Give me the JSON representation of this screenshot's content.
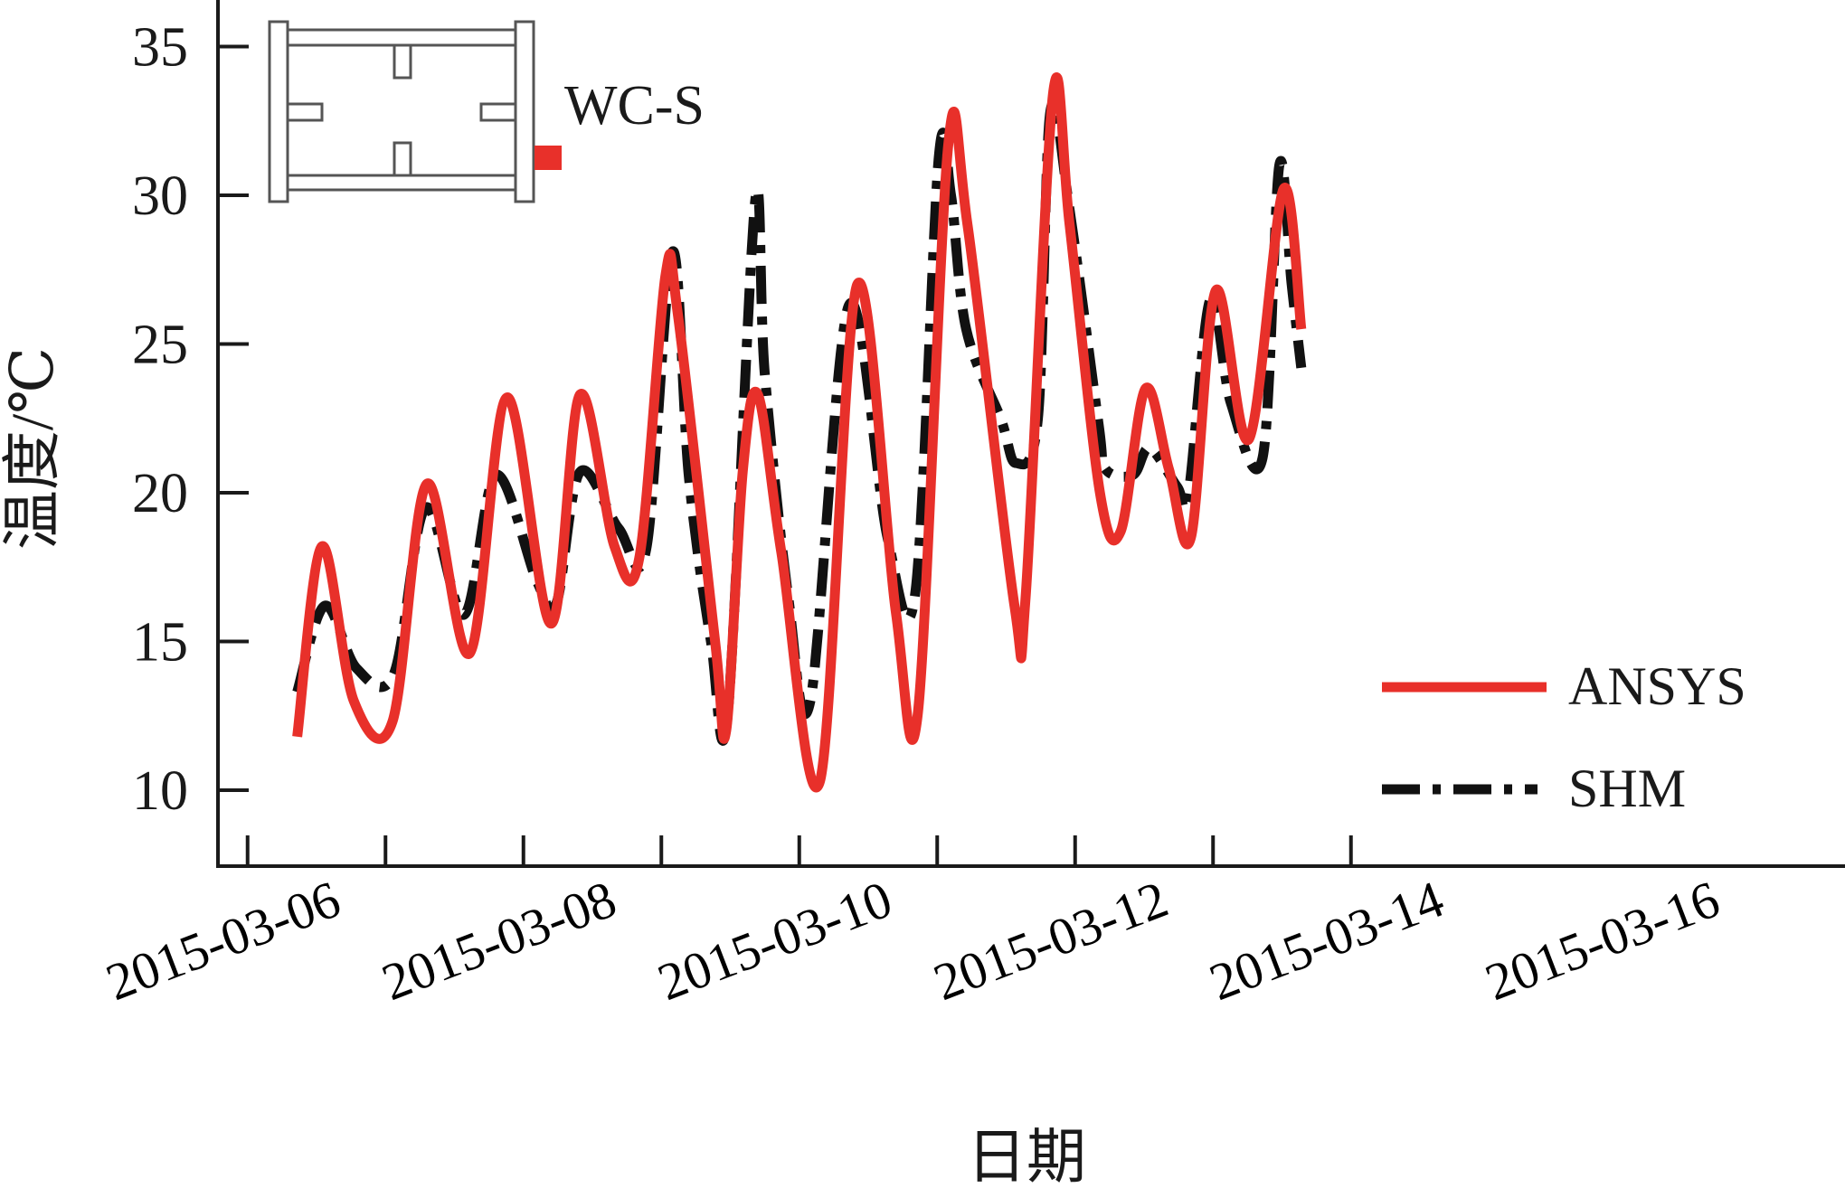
{
  "chart_data": {
    "type": "line",
    "title": "",
    "xlabel": "日期",
    "ylabel": "温度/℃",
    "ylim": [
      7.5,
      36.5
    ],
    "yticks": [
      10,
      15,
      20,
      25,
      30,
      35
    ],
    "x_tick_labels": [
      "2015-03-06",
      "2015-03-08",
      "2015-03-10",
      "2015-03-12",
      "2015-03-14",
      "2015-03-16"
    ],
    "legend_position": "right",
    "inset_label": "WC-S",
    "colors": {
      "ANSYS": "#e8302a",
      "SHM": "#111111",
      "sensor_marker": "#e8302a",
      "inset_frame": "#555555"
    },
    "series": [
      {
        "name": "ANSYS",
        "style": "solid",
        "points": [
          [
            -0.14,
            11.8
          ],
          [
            0.04,
            18.2
          ],
          [
            0.27,
            13.0
          ],
          [
            0.55,
            12.3
          ],
          [
            0.8,
            20.3
          ],
          [
            1.11,
            14.6
          ],
          [
            1.38,
            23.2
          ],
          [
            1.7,
            15.6
          ],
          [
            1.91,
            23.3
          ],
          [
            2.16,
            18.2
          ],
          [
            2.34,
            17.8
          ],
          [
            2.53,
            27.3
          ],
          [
            2.62,
            26.0
          ],
          [
            2.89,
            15.0
          ],
          [
            2.97,
            12.0
          ],
          [
            3.09,
            20.7
          ],
          [
            3.2,
            23.3
          ],
          [
            3.37,
            18.0
          ],
          [
            3.65,
            10.3
          ],
          [
            3.92,
            27.0
          ],
          [
            4.2,
            16.0
          ],
          [
            4.36,
            12.6
          ],
          [
            4.58,
            31.7
          ],
          [
            4.72,
            29.0
          ],
          [
            5.06,
            16.2
          ],
          [
            5.14,
            16.4
          ],
          [
            5.34,
            33.4
          ],
          [
            5.46,
            29.0
          ],
          [
            5.68,
            20.0
          ],
          [
            5.83,
            18.7
          ],
          [
            6.01,
            23.5
          ],
          [
            6.18,
            20.8
          ],
          [
            6.34,
            18.5
          ],
          [
            6.52,
            26.8
          ],
          [
            6.76,
            21.8
          ],
          [
            7.01,
            30.2
          ],
          [
            7.14,
            25.5
          ]
        ]
      },
      {
        "name": "SHM",
        "style": "dashdot",
        "points": [
          [
            -0.14,
            13.3
          ],
          [
            0.06,
            16.2
          ],
          [
            0.29,
            14.1
          ],
          [
            0.56,
            13.9
          ],
          [
            0.79,
            19.5
          ],
          [
            1.07,
            15.9
          ],
          [
            1.3,
            20.6
          ],
          [
            1.6,
            17.0
          ],
          [
            1.74,
            16.3
          ],
          [
            1.91,
            20.7
          ],
          [
            2.19,
            18.8
          ],
          [
            2.39,
            18.1
          ],
          [
            2.58,
            28.1
          ],
          [
            2.7,
            20.5
          ],
          [
            2.86,
            15.0
          ],
          [
            2.98,
            12.5
          ],
          [
            3.18,
            29.8
          ],
          [
            3.25,
            24.0
          ],
          [
            3.42,
            16.5
          ],
          [
            3.58,
            13.0
          ],
          [
            3.86,
            26.3
          ],
          [
            4.14,
            18.5
          ],
          [
            4.34,
            16.6
          ],
          [
            4.51,
            31.2
          ],
          [
            4.6,
            30.0
          ],
          [
            4.71,
            25.5
          ],
          [
            4.96,
            22.5
          ],
          [
            5.07,
            21.0
          ],
          [
            5.23,
            22.5
          ],
          [
            5.32,
            32.8
          ],
          [
            5.46,
            29.5
          ],
          [
            5.67,
            22.3
          ],
          [
            5.72,
            20.8
          ],
          [
            5.92,
            20.6
          ],
          [
            6.04,
            21.5
          ],
          [
            6.24,
            20.2
          ],
          [
            6.32,
            19.9
          ],
          [
            6.48,
            26.5
          ],
          [
            6.63,
            23.0
          ],
          [
            6.86,
            21.2
          ],
          [
            6.98,
            31.0
          ],
          [
            7.07,
            27.0
          ],
          [
            7.14,
            24.2
          ]
        ]
      }
    ]
  }
}
